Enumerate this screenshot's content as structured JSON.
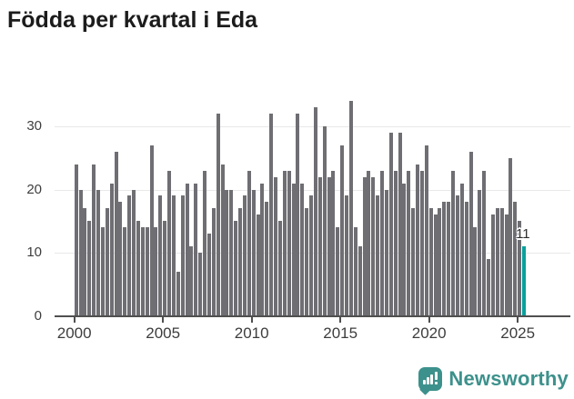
{
  "title": "Födda per kvartal i Eda",
  "chart_data": {
    "type": "bar",
    "title": "Födda per kvartal i Eda",
    "x_tick_labels": [
      "2000",
      "2005",
      "2010",
      "2015",
      "2020",
      "2025"
    ],
    "ytick_labels": [
      "0",
      "10",
      "20",
      "30"
    ],
    "yticks": [
      0,
      10,
      20,
      30
    ],
    "ylim": [
      0,
      36
    ],
    "grid": "horizontal",
    "legend": "none",
    "series": [
      {
        "name": "Födda per kvartal",
        "frequency": "quarterly",
        "first_period_label": "2000",
        "values": [
          24,
          20,
          17,
          15,
          24,
          20,
          14,
          17,
          21,
          26,
          18,
          14,
          19,
          20,
          15,
          14,
          14,
          27,
          14,
          19,
          15,
          23,
          19,
          7,
          19,
          21,
          11,
          21,
          10,
          23,
          13,
          17,
          32,
          24,
          20,
          20,
          15,
          17,
          19,
          23,
          20,
          16,
          21,
          18,
          32,
          22,
          15,
          23,
          23,
          21,
          32,
          21,
          17,
          19,
          33,
          22,
          30,
          22,
          23,
          14,
          27,
          19,
          34,
          14,
          11,
          22,
          23,
          22,
          19,
          23,
          20,
          29,
          23,
          29,
          21,
          23,
          17,
          24,
          23,
          27,
          17,
          16,
          17,
          18,
          18,
          23,
          19,
          21,
          18,
          26,
          14,
          20,
          23,
          9,
          16,
          17,
          17,
          16,
          25,
          18,
          15,
          11
        ]
      }
    ],
    "highlight": {
      "index": 101,
      "value": 11,
      "value_label": "11"
    },
    "colors": {
      "bar": "#6f6e73",
      "highlight": "#0aa09c",
      "gridline": "#e9e9e9",
      "axis": "#4f4f4f"
    }
  },
  "footer": {
    "brand": "Newsworthy",
    "logo_color": "#3d918c"
  }
}
